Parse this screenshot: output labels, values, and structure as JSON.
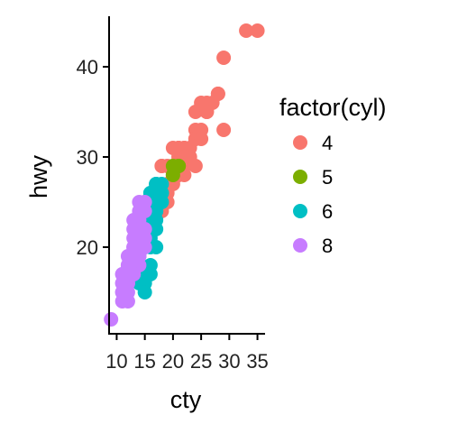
{
  "chart_data": {
    "type": "scatter",
    "title": "",
    "xlabel": "cty",
    "ylabel": "hwy",
    "xlim": [
      8.65,
      36.35
    ],
    "ylim": [
      10.4,
      45.6
    ],
    "x_ticks": [
      10,
      15,
      20,
      25,
      30,
      35
    ],
    "y_ticks": [
      20,
      30,
      40
    ],
    "grid": false,
    "legend": {
      "title": "factor(cyl)",
      "placement": "right"
    },
    "series": [
      {
        "name": "4",
        "color": "#F8766D",
        "points": [
          [
            18,
            29
          ],
          [
            21,
            29
          ],
          [
            20,
            31
          ],
          [
            21,
            30
          ],
          [
            18,
            26
          ],
          [
            18,
            29
          ],
          [
            19,
            27
          ],
          [
            19,
            29
          ],
          [
            21,
            31
          ],
          [
            20,
            28
          ],
          [
            20,
            29
          ],
          [
            22,
            29
          ],
          [
            35,
            44
          ],
          [
            29,
            41
          ],
          [
            33,
            44
          ],
          [
            24,
            33
          ],
          [
            28,
            37
          ],
          [
            24,
            35
          ],
          [
            26,
            36
          ],
          [
            22,
            31
          ],
          [
            21,
            29
          ],
          [
            21,
            28
          ],
          [
            23,
            30
          ],
          [
            22,
            31
          ],
          [
            19,
            25
          ],
          [
            24,
            32
          ],
          [
            25,
            36
          ],
          [
            26,
            35
          ],
          [
            23,
            31
          ],
          [
            25,
            33
          ],
          [
            27,
            36
          ],
          [
            28,
            37
          ],
          [
            24,
            32
          ],
          [
            23,
            30
          ],
          [
            20,
            27
          ],
          [
            19,
            26
          ],
          [
            22,
            28
          ],
          [
            21,
            30
          ],
          [
            29,
            33
          ],
          [
            20,
            29
          ],
          [
            18,
            24
          ],
          [
            17,
            26
          ],
          [
            20,
            28
          ],
          [
            24,
            29
          ],
          [
            25,
            32
          ],
          [
            21,
            31
          ],
          [
            22,
            30
          ],
          [
            21,
            28
          ],
          [
            26,
            35
          ],
          [
            20,
            28
          ]
        ]
      },
      {
        "name": "5",
        "color": "#7CAE00",
        "points": [
          [
            21,
            29
          ],
          [
            21,
            29
          ],
          [
            20,
            28
          ],
          [
            20,
            29
          ]
        ]
      },
      {
        "name": "6",
        "color": "#00BFC4",
        "points": [
          [
            16,
            26
          ],
          [
            17,
            26
          ],
          [
            16,
            25
          ],
          [
            15,
            25
          ],
          [
            17,
            27
          ],
          [
            18,
            26
          ],
          [
            17,
            25
          ],
          [
            15,
            24
          ],
          [
            16,
            23
          ],
          [
            15,
            21
          ],
          [
            16,
            22
          ],
          [
            14,
            19
          ],
          [
            15,
            20
          ],
          [
            14,
            17
          ],
          [
            16,
            18
          ],
          [
            17,
            24
          ],
          [
            18,
            25
          ],
          [
            16,
            24
          ],
          [
            17,
            26
          ],
          [
            18,
            27
          ],
          [
            17,
            23
          ],
          [
            15,
            22
          ],
          [
            16,
            21
          ],
          [
            14,
            18
          ],
          [
            15,
            17
          ],
          [
            14,
            20
          ],
          [
            16,
            20
          ],
          [
            17,
            24
          ],
          [
            18,
            26
          ],
          [
            16,
            26
          ],
          [
            17,
            27
          ],
          [
            17,
            25
          ],
          [
            15,
            23
          ],
          [
            16,
            24
          ],
          [
            17,
            22
          ],
          [
            15,
            16
          ],
          [
            14,
            16
          ],
          [
            15,
            15
          ],
          [
            16,
            17
          ],
          [
            17,
            20
          ]
        ]
      },
      {
        "name": "8",
        "color": "#C77CFF",
        "points": [
          [
            15,
            25
          ],
          [
            15,
            24
          ],
          [
            14,
            23
          ],
          [
            13,
            20
          ],
          [
            12,
            17
          ],
          [
            11,
            15
          ],
          [
            12,
            16
          ],
          [
            11,
            14
          ],
          [
            13,
            19
          ],
          [
            14,
            19
          ],
          [
            12,
            18
          ],
          [
            11,
            17
          ],
          [
            13,
            17
          ],
          [
            12,
            15
          ],
          [
            11,
            16
          ],
          [
            14,
            20
          ],
          [
            15,
            22
          ],
          [
            13,
            18
          ],
          [
            14,
            21
          ],
          [
            12,
            19
          ],
          [
            11,
            17
          ],
          [
            14,
            25
          ],
          [
            13,
            21
          ],
          [
            12,
            16
          ],
          [
            9,
            12
          ],
          [
            15,
            20
          ],
          [
            14,
            22
          ],
          [
            13,
            23
          ],
          [
            14,
            18
          ],
          [
            11,
            15
          ],
          [
            12,
            14
          ],
          [
            13,
            17
          ],
          [
            15,
            21
          ],
          [
            14,
            24
          ],
          [
            13,
            22
          ],
          [
            12,
            18
          ],
          [
            11,
            16
          ],
          [
            14,
            19
          ],
          [
            12,
            17
          ],
          [
            13,
            20
          ]
        ]
      }
    ]
  }
}
